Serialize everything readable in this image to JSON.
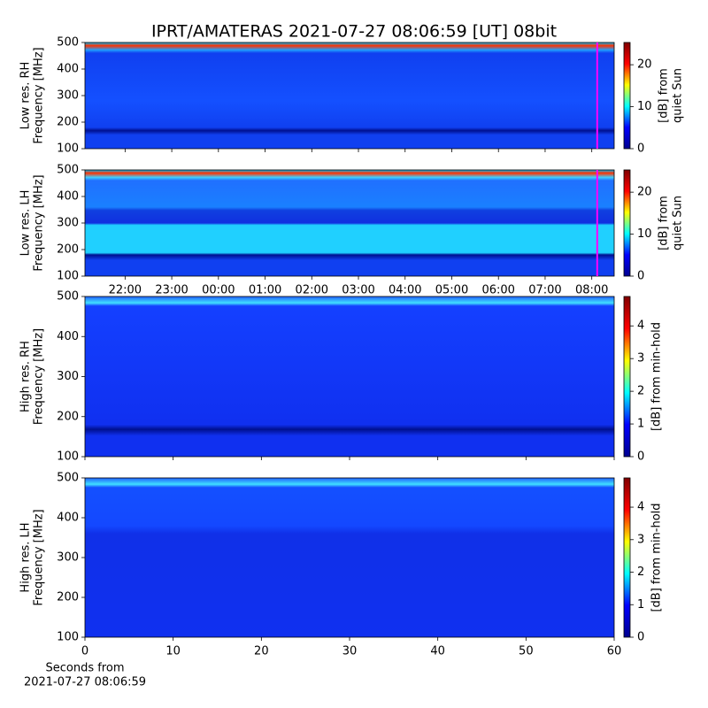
{
  "chart_data": {
    "type": "spectrogram",
    "title": "IPRT/AMATERAS 2021-07-27 08:06:59 [UT]   08bit",
    "time_axis": {
      "xlim": [
        21.14,
        32.48
      ],
      "xticks": [
        {
          "value": 22,
          "label": "22:00"
        },
        {
          "value": 23,
          "label": "23:00"
        },
        {
          "value": 24,
          "label": "00:00"
        },
        {
          "value": 25,
          "label": "01:00"
        },
        {
          "value": 26,
          "label": "02:00"
        },
        {
          "value": 27,
          "label": "03:00"
        },
        {
          "value": 28,
          "label": "04:00"
        },
        {
          "value": 29,
          "label": "05:00"
        },
        {
          "value": 30,
          "label": "06:00"
        },
        {
          "value": 31,
          "label": "07:00"
        },
        {
          "value": 32,
          "label": "08:00"
        }
      ],
      "marker_x": 32.116,
      "marker_color": "#ff00ff"
    },
    "seconds_axis": {
      "xlim": [
        0,
        60
      ],
      "xticks": [
        0,
        10,
        20,
        30,
        40,
        50,
        60
      ],
      "xlabel": [
        "Seconds from",
        "2021-07-27 08:06:59"
      ]
    },
    "colormap": [
      "#00008f",
      "#0000ff",
      "#00ffff",
      "#ffff00",
      "#ff0000",
      "#800000"
    ],
    "panels": [
      {
        "ylabel": [
          "Low res. RH",
          "Frequency [MHz]"
        ],
        "ylim": [
          100,
          500
        ],
        "yticks": [
          100,
          200,
          300,
          400,
          500
        ],
        "clabel": [
          "[dB] from",
          "quiet Sun"
        ],
        "clim": [
          0,
          25.3
        ],
        "cticks": [
          0,
          10,
          20
        ]
      },
      {
        "ylabel": [
          "Low res. LH",
          "Frequency [MHz]"
        ],
        "ylim": [
          100,
          500
        ],
        "yticks": [
          100,
          200,
          300,
          400,
          500
        ],
        "clabel": [
          "[dB] from",
          "quiet Sun"
        ],
        "clim": [
          0,
          25.3
        ],
        "cticks": [
          0,
          10,
          20
        ]
      },
      {
        "ylabel": [
          "High res. RH",
          "Frequency [MHz]"
        ],
        "ylim": [
          100,
          500
        ],
        "yticks": [
          100,
          200,
          300,
          400,
          500
        ],
        "clabel": [
          "[dB] from min-hold"
        ],
        "clim": [
          0,
          4.9
        ],
        "cticks": [
          0,
          1,
          2,
          3,
          4
        ]
      },
      {
        "ylabel": [
          "High res. LH",
          "Frequency [MHz]"
        ],
        "ylim": [
          100,
          500
        ],
        "yticks": [
          100,
          200,
          300,
          400,
          500
        ],
        "clabel": [
          "[dB] from min-hold"
        ],
        "clim": [
          0,
          4.9
        ],
        "cticks": [
          0,
          1,
          2,
          3,
          4
        ]
      }
    ]
  }
}
